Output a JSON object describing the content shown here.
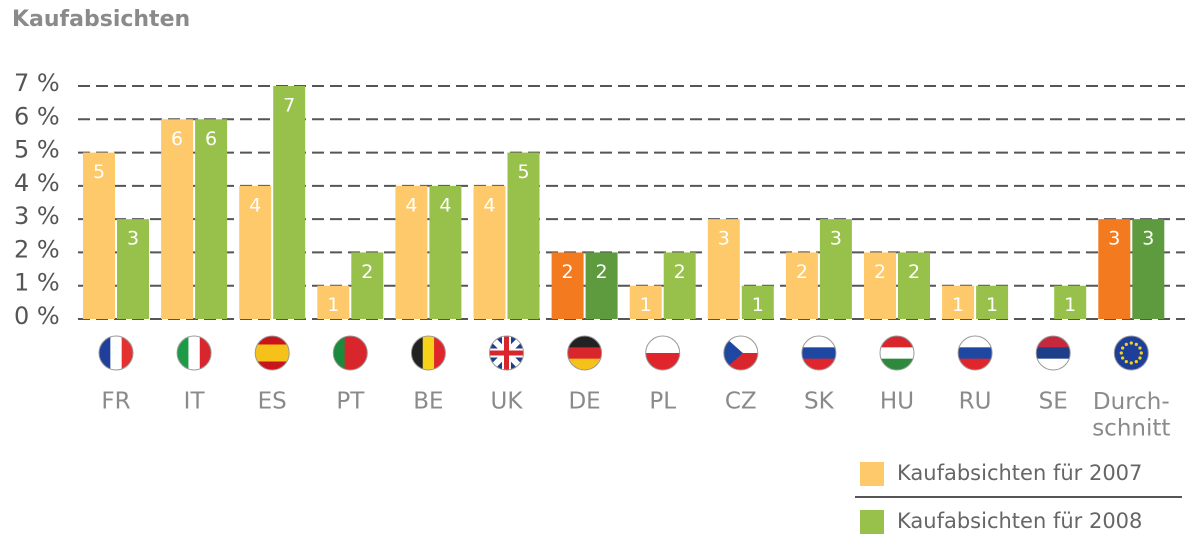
{
  "chart_data": {
    "type": "bar",
    "title": "Kaufabsichten",
    "categories": [
      "FR",
      "IT",
      "ES",
      "PT",
      "BE",
      "UK",
      "DE",
      "PL",
      "CZ",
      "SK",
      "HU",
      "RU",
      "SE",
      "Durch-\nschnitt"
    ],
    "series": [
      {
        "name": "Kaufabsichten für 2007",
        "color": "#fdc96b",
        "colors": [
          "#fdc96b",
          "#fdc96b",
          "#fdc96b",
          "#fdc96b",
          "#fdc96b",
          "#fdc96b",
          "#f47a20",
          "#fdc96b",
          "#fdc96b",
          "#fdc96b",
          "#fdc96b",
          "#fdc96b",
          "#fdc96b",
          "#f47a20"
        ],
        "values": [
          5,
          6,
          4,
          1,
          4,
          4,
          2,
          1,
          3,
          2,
          2,
          1,
          null,
          3
        ]
      },
      {
        "name": "Kaufabsichten für 2008",
        "color": "#98c14c",
        "colors": [
          "#98c14c",
          "#98c14c",
          "#98c14c",
          "#98c14c",
          "#98c14c",
          "#98c14c",
          "#5e9a3e",
          "#98c14c",
          "#98c14c",
          "#98c14c",
          "#98c14c",
          "#98c14c",
          "#98c14c",
          "#5e9a3e"
        ],
        "values": [
          3,
          6,
          7,
          2,
          4,
          5,
          2,
          2,
          1,
          3,
          2,
          1,
          1,
          3
        ]
      }
    ],
    "ylim": [
      0,
      7
    ],
    "yticks": [
      {
        "value": 0,
        "label": "0 %"
      },
      {
        "value": 1,
        "label": "1 %"
      },
      {
        "value": 2,
        "label": "2 %"
      },
      {
        "value": 3,
        "label": "3 %"
      },
      {
        "value": 4,
        "label": "4 %"
      },
      {
        "value": 5,
        "label": "5 %"
      },
      {
        "value": 6,
        "label": "6 %"
      },
      {
        "value": 7,
        "label": "7 %"
      }
    ],
    "grid": true,
    "value_labels_shown": true,
    "legend": "bottom-right"
  }
}
